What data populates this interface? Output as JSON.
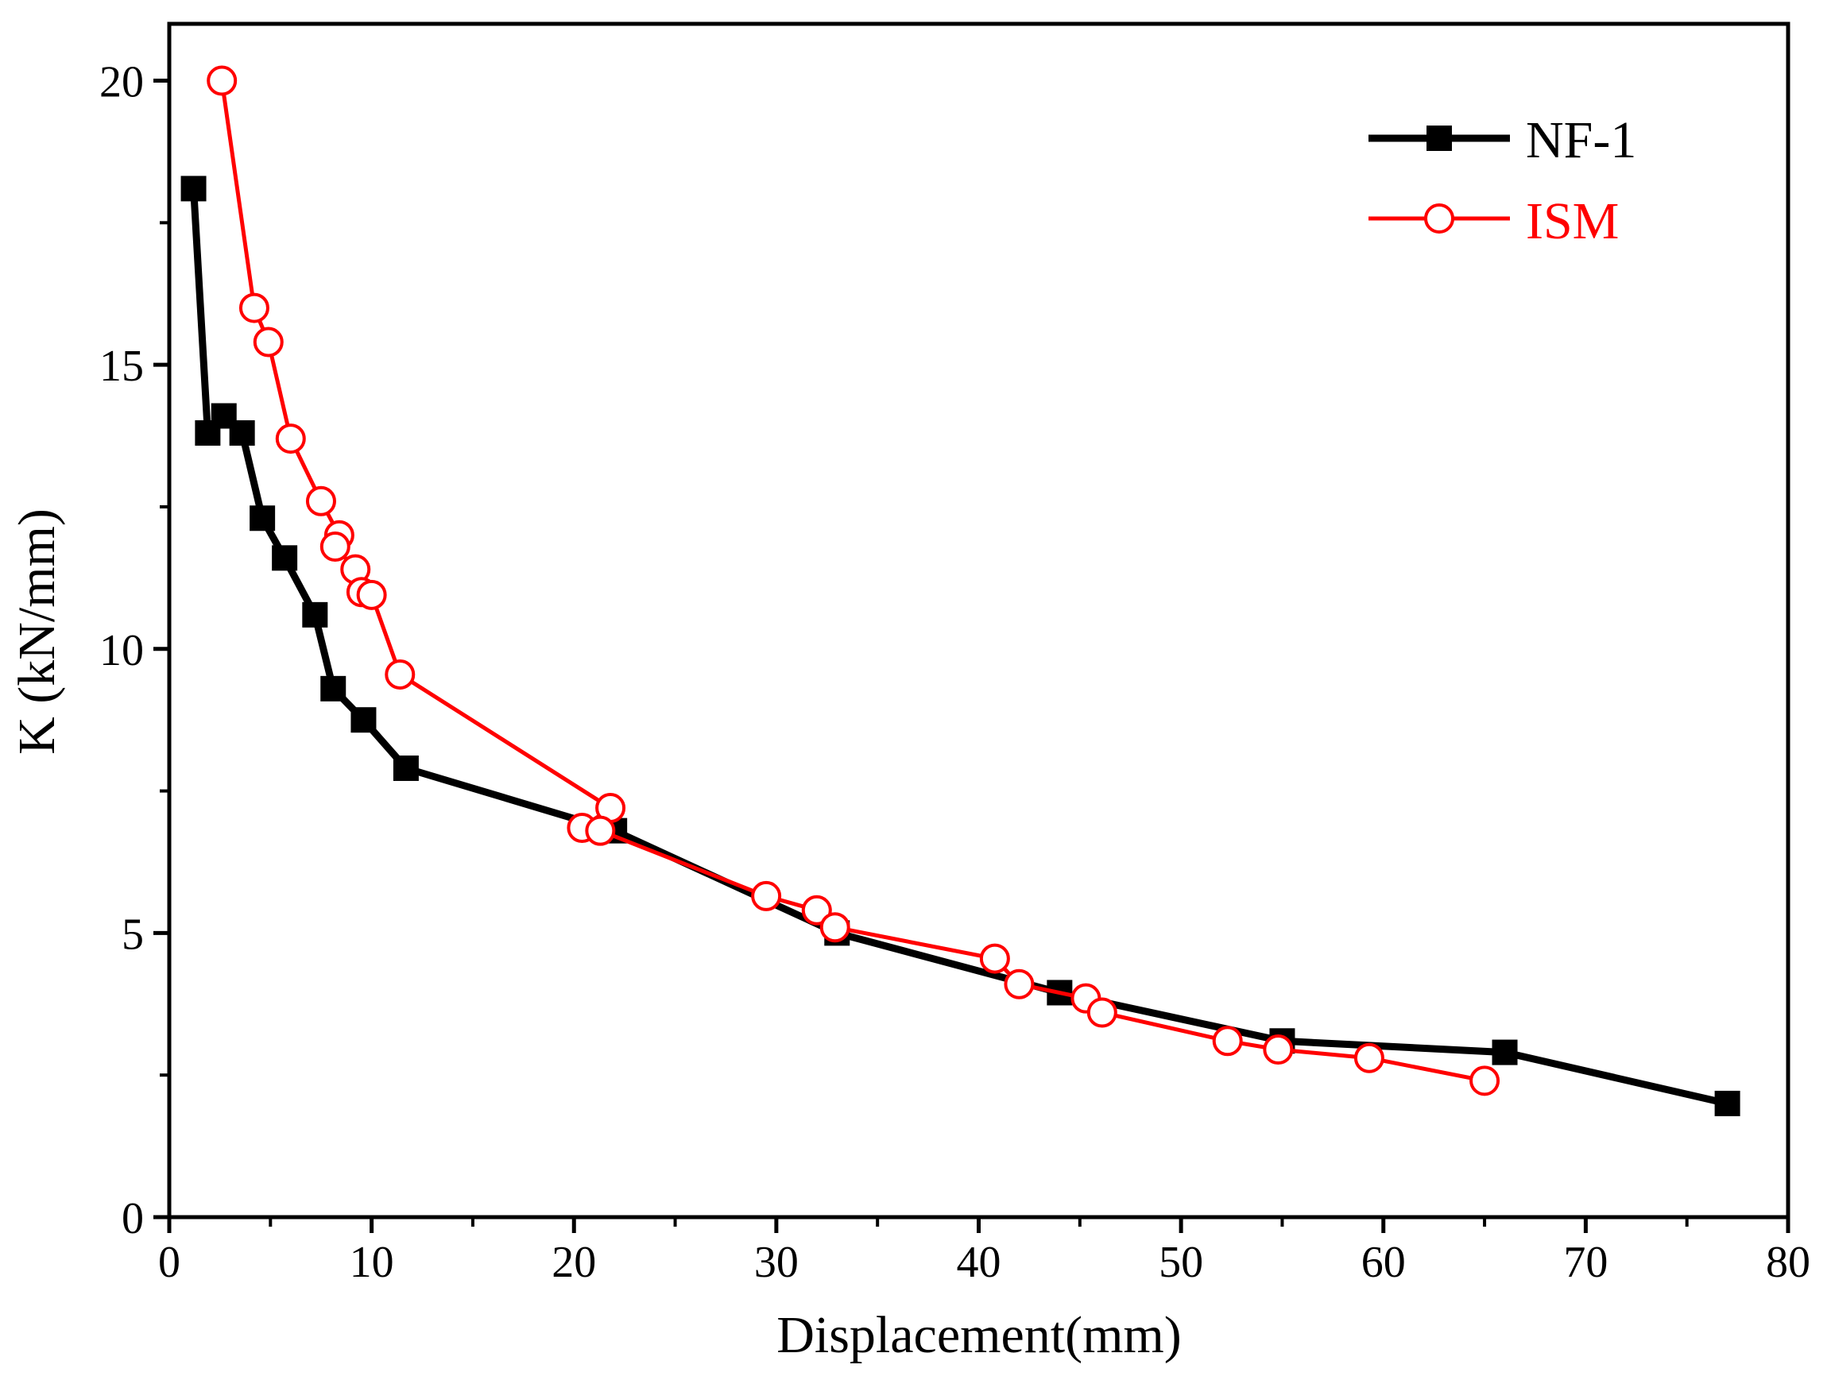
{
  "chart_data": {
    "type": "line",
    "title": "",
    "xlabel": "Displacement(mm)",
    "ylabel": "K (kN/mm)",
    "xlim": [
      0,
      80
    ],
    "ylim": [
      0,
      21
    ],
    "xticks": [
      0,
      10,
      20,
      30,
      40,
      50,
      60,
      70,
      80
    ],
    "xtick_labels": [
      "0",
      "10",
      "20",
      "30",
      "40",
      "50",
      "60",
      "70",
      "80"
    ],
    "yticks": [
      0,
      5,
      10,
      15,
      20
    ],
    "ytick_labels": [
      "0",
      "5",
      "10",
      "15",
      "20"
    ],
    "grid": false,
    "legend_position": "top-right",
    "series": [
      {
        "name": "NF-1",
        "color": "#000000",
        "marker": "filled-square",
        "x": [
          1.2,
          1.9,
          2.7,
          3.6,
          4.6,
          5.7,
          7.2,
          8.1,
          9.6,
          11.7,
          22.0,
          33.0,
          44.0,
          55.0,
          66.0,
          77.0
        ],
        "y": [
          18.1,
          13.8,
          14.1,
          13.8,
          12.3,
          11.6,
          10.6,
          9.3,
          8.75,
          7.9,
          6.8,
          5.0,
          3.95,
          3.1,
          2.9,
          2.0
        ]
      },
      {
        "name": "ISM",
        "color": "#ff0000",
        "marker": "open-circle",
        "x": [
          2.6,
          4.2,
          4.9,
          6.0,
          7.5,
          8.4,
          8.2,
          9.2,
          9.5,
          10.0,
          11.4,
          21.8,
          20.4,
          21.3,
          29.5,
          32.0,
          32.9,
          40.8,
          42.0,
          45.3,
          46.1,
          52.3,
          54.8,
          59.3,
          65.0
        ],
        "y": [
          20.0,
          16.0,
          15.4,
          13.7,
          12.6,
          12.0,
          11.8,
          11.4,
          11.0,
          10.95,
          9.55,
          7.2,
          6.85,
          6.8,
          5.65,
          5.4,
          5.1,
          4.55,
          4.1,
          3.85,
          3.6,
          3.1,
          2.95,
          2.8,
          2.4
        ]
      }
    ]
  }
}
